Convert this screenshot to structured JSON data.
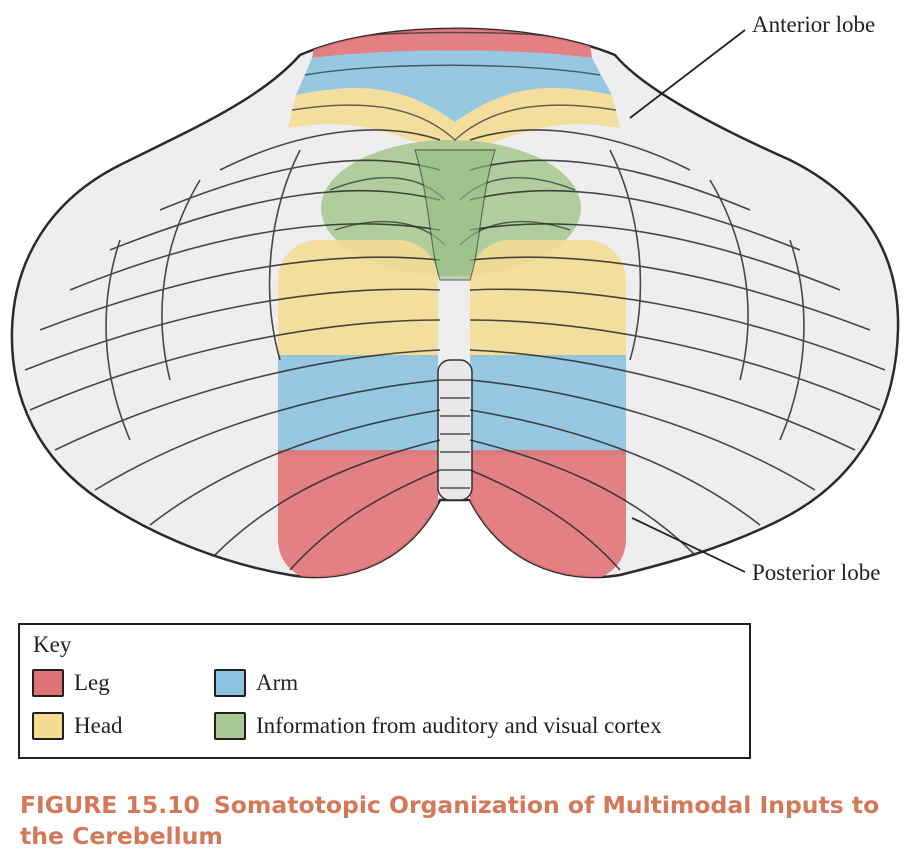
{
  "labels": {
    "anterior": "Anterior lobe",
    "posterior": "Posterior lobe"
  },
  "key": {
    "title": "Key",
    "items": [
      {
        "label": "Leg",
        "color": "#e07377"
      },
      {
        "label": "Arm",
        "color": "#8cc3e0"
      },
      {
        "label": "Head",
        "color": "#f4dc93"
      },
      {
        "label": "Information from auditory and visual cortex",
        "color": "#a8c993"
      }
    ]
  },
  "caption": {
    "number": "FIGURE 15.10",
    "title": "Somatotopic Organization of Multimodal Inputs to the Cerebellum"
  },
  "colors": {
    "caption": "#d4785a",
    "outline": "#231f20",
    "tissue": "#eeeeee"
  }
}
